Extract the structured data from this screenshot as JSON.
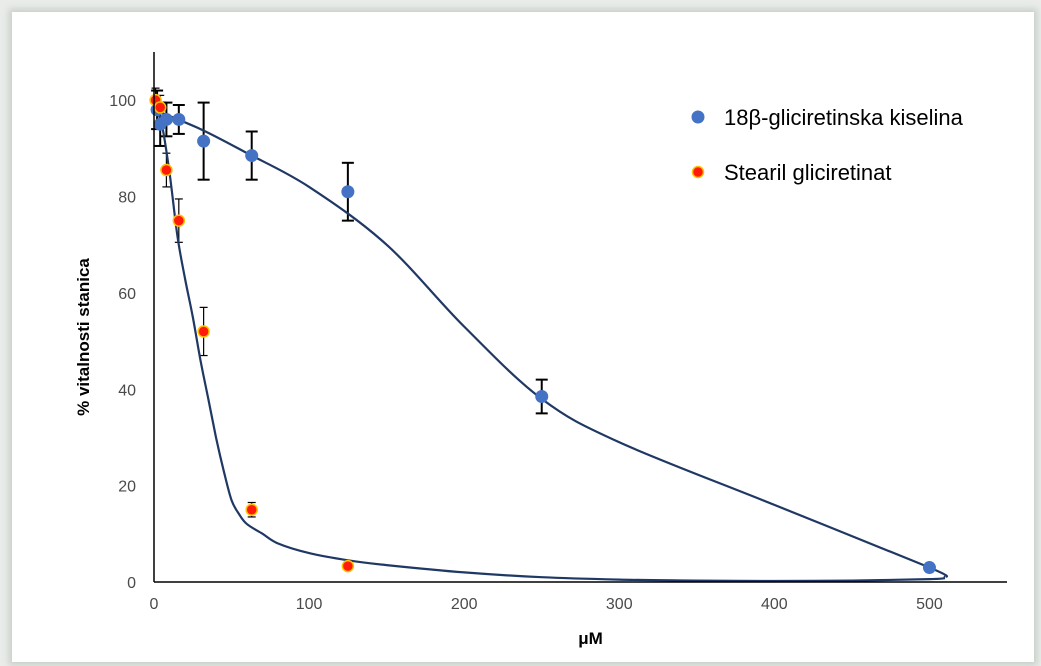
{
  "chart_data": {
    "type": "scatter",
    "title": "",
    "xlabel": "μM",
    "ylabel": "% vitalnosti stanica",
    "xlim": [
      0,
      550
    ],
    "ylim": [
      0,
      110
    ],
    "xticks": [
      0,
      100,
      200,
      300,
      400,
      500
    ],
    "yticks": [
      0,
      20,
      40,
      60,
      80,
      100
    ],
    "grid": false,
    "legend_position": "top-right",
    "series": [
      {
        "name": "18β-gliciretinska kiselina",
        "color": "#4472c4",
        "x": [
          2,
          4,
          8,
          16,
          32,
          63,
          125,
          250,
          500
        ],
        "y": [
          98,
          95,
          96,
          96,
          91.5,
          88.5,
          81,
          38.5,
          3
        ],
        "err": [
          4,
          4.5,
          3.5,
          3,
          8,
          5,
          6,
          3.5,
          0
        ],
        "fit_curve": {
          "x": [
            0,
            30,
            60,
            100,
            150,
            200,
            250,
            300,
            400,
            500,
            510
          ],
          "y": [
            98,
            94,
            89,
            82,
            70,
            53,
            38,
            29,
            16,
            3,
            1
          ]
        }
      },
      {
        "name": "Stearil gliciretinat",
        "color": "#ff1a0a",
        "edge_color": "#ffc000",
        "x": [
          1,
          4,
          8,
          16,
          32,
          63,
          125
        ],
        "y": [
          100,
          98.5,
          85.5,
          75,
          52,
          15,
          3.3
        ],
        "err": [
          2.5,
          2.5,
          3.5,
          4.5,
          5,
          1.5,
          0
        ],
        "fit_curve": {
          "x": [
            0,
            5,
            10,
            15,
            20,
            25,
            30,
            35,
            40,
            45,
            50,
            55,
            60,
            70,
            80,
            100,
            125,
            150,
            200,
            250,
            300,
            350,
            400,
            450,
            500,
            510
          ],
          "y": [
            99,
            95,
            85,
            72,
            63,
            55,
            46,
            38,
            30,
            23,
            17,
            14,
            12,
            10,
            8,
            6,
            4.5,
            3.5,
            2,
            1,
            0.5,
            0.3,
            0.2,
            0.3,
            0.6,
            0.8
          ]
        }
      }
    ]
  }
}
